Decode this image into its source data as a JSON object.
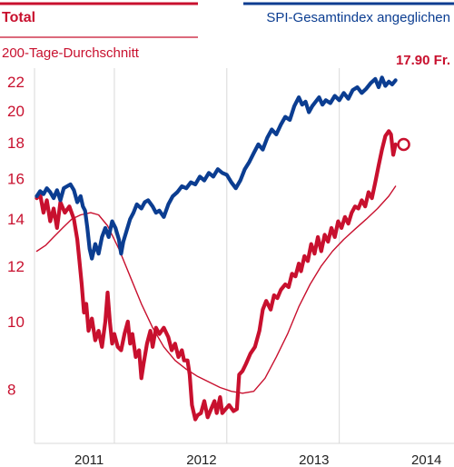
{
  "chart_data": {
    "type": "line",
    "title": "",
    "xlabel": "",
    "ylabel": "",
    "y_scale": "log",
    "ylim": [
      6.7,
      23
    ],
    "xlim": [
      2010.45,
      2014.18
    ],
    "y_ticks": [
      8,
      10,
      12,
      14,
      16,
      18,
      20,
      22
    ],
    "x_ticks": [
      {
        "label": "2011",
        "value": 2011.0
      },
      {
        "label": "2012",
        "value": 2012.0
      },
      {
        "label": "2013",
        "value": 2013.0
      },
      {
        "label": "2014",
        "value": 2014.0
      }
    ],
    "grid": "vertical",
    "last_price_label": "17.90 Fr.",
    "colors": {
      "total": "#c8102e",
      "average": "#c8102e",
      "spi": "#0b3d91",
      "grid": "#d9d9d9"
    },
    "series": [
      {
        "name": "Total",
        "points": [
          [
            2010.47,
            15.0
          ],
          [
            2010.5,
            15.2
          ],
          [
            2010.53,
            14.3
          ],
          [
            2010.56,
            14.9
          ],
          [
            2010.59,
            13.9
          ],
          [
            2010.62,
            14.5
          ],
          [
            2010.65,
            13.6
          ],
          [
            2010.68,
            14.8
          ],
          [
            2010.72,
            14.3
          ],
          [
            2010.76,
            14.6
          ],
          [
            2010.8,
            14.0
          ],
          [
            2010.83,
            13.1
          ],
          [
            2010.85,
            12.2
          ],
          [
            2010.87,
            11.3
          ],
          [
            2010.89,
            10.3
          ],
          [
            2010.91,
            10.6
          ],
          [
            2010.93,
            9.7
          ],
          [
            2010.96,
            10.1
          ],
          [
            2010.99,
            9.4
          ],
          [
            2011.02,
            9.7
          ],
          [
            2011.05,
            9.2
          ],
          [
            2011.08,
            10.0
          ],
          [
            2011.1,
            11.0
          ],
          [
            2011.12,
            10.0
          ],
          [
            2011.14,
            9.3
          ],
          [
            2011.16,
            9.6
          ],
          [
            2011.19,
            9.2
          ],
          [
            2011.22,
            9.1
          ],
          [
            2011.25,
            9.6
          ],
          [
            2011.28,
            10.0
          ],
          [
            2011.3,
            9.3
          ],
          [
            2011.32,
            9.6
          ],
          [
            2011.35,
            8.9
          ],
          [
            2011.38,
            9.1
          ],
          [
            2011.4,
            8.3
          ],
          [
            2011.42,
            8.7
          ],
          [
            2011.45,
            9.3
          ],
          [
            2011.48,
            9.7
          ],
          [
            2011.5,
            9.2
          ],
          [
            2011.53,
            9.8
          ],
          [
            2011.56,
            9.6
          ],
          [
            2011.6,
            9.8
          ],
          [
            2011.64,
            9.5
          ],
          [
            2011.67,
            9.1
          ],
          [
            2011.7,
            9.3
          ],
          [
            2011.73,
            8.9
          ],
          [
            2011.76,
            9.1
          ],
          [
            2011.78,
            8.8
          ],
          [
            2011.81,
            8.8
          ],
          [
            2011.83,
            8.4
          ],
          [
            2011.85,
            7.6
          ],
          [
            2011.88,
            7.25
          ],
          [
            2011.9,
            7.35
          ],
          [
            2011.93,
            7.4
          ],
          [
            2011.96,
            7.7
          ],
          [
            2011.99,
            7.3
          ],
          [
            2012.02,
            7.5
          ],
          [
            2012.05,
            7.7
          ],
          [
            2012.07,
            7.4
          ],
          [
            2012.1,
            7.8
          ],
          [
            2012.12,
            7.4
          ],
          [
            2012.15,
            7.5
          ],
          [
            2012.18,
            7.6
          ],
          [
            2012.22,
            7.45
          ],
          [
            2012.25,
            7.5
          ],
          [
            2012.27,
            8.4
          ],
          [
            2012.3,
            8.5
          ],
          [
            2012.33,
            8.7
          ],
          [
            2012.37,
            9.0
          ],
          [
            2012.41,
            9.2
          ],
          [
            2012.45,
            9.7
          ],
          [
            2012.48,
            10.4
          ],
          [
            2012.51,
            10.7
          ],
          [
            2012.55,
            10.4
          ],
          [
            2012.58,
            10.9
          ],
          [
            2012.61,
            10.8
          ],
          [
            2012.64,
            11.1
          ],
          [
            2012.68,
            11.3
          ],
          [
            2012.71,
            11.2
          ],
          [
            2012.74,
            11.7
          ],
          [
            2012.77,
            11.6
          ],
          [
            2012.8,
            12.1
          ],
          [
            2012.82,
            11.8
          ],
          [
            2012.85,
            12.4
          ],
          [
            2012.88,
            12.2
          ],
          [
            2012.91,
            12.9
          ],
          [
            2012.94,
            12.5
          ],
          [
            2012.97,
            13.2
          ],
          [
            2013.0,
            12.6
          ],
          [
            2013.03,
            13.3
          ],
          [
            2013.06,
            13.0
          ],
          [
            2013.09,
            13.6
          ],
          [
            2013.12,
            13.2
          ],
          [
            2013.15,
            13.9
          ],
          [
            2013.18,
            13.6
          ],
          [
            2013.21,
            14.1
          ],
          [
            2013.24,
            13.8
          ],
          [
            2013.27,
            14.3
          ],
          [
            2013.3,
            14.6
          ],
          [
            2013.33,
            14.5
          ],
          [
            2013.36,
            14.9
          ],
          [
            2013.39,
            14.6
          ],
          [
            2013.42,
            15.3
          ],
          [
            2013.45,
            15.0
          ],
          [
            2013.48,
            15.8
          ],
          [
            2013.51,
            16.7
          ],
          [
            2013.54,
            17.6
          ],
          [
            2013.57,
            18.4
          ],
          [
            2013.6,
            18.7
          ],
          [
            2013.62,
            18.5
          ],
          [
            2013.64,
            17.3
          ],
          [
            2013.66,
            17.9
          ]
        ]
      },
      {
        "name": "200-Tage-Durchschnitt",
        "points": [
          [
            2010.47,
            12.6
          ],
          [
            2010.55,
            12.85
          ],
          [
            2010.62,
            13.2
          ],
          [
            2010.7,
            13.6
          ],
          [
            2010.78,
            14.0
          ],
          [
            2010.86,
            14.2
          ],
          [
            2010.95,
            14.3
          ],
          [
            2011.02,
            14.2
          ],
          [
            2011.1,
            13.7
          ],
          [
            2011.2,
            12.7
          ],
          [
            2011.3,
            11.6
          ],
          [
            2011.4,
            10.6
          ],
          [
            2011.5,
            9.8
          ],
          [
            2011.6,
            9.2
          ],
          [
            2011.7,
            8.8
          ],
          [
            2011.8,
            8.55
          ],
          [
            2011.9,
            8.35
          ],
          [
            2012.0,
            8.2
          ],
          [
            2012.1,
            8.05
          ],
          [
            2012.2,
            7.95
          ],
          [
            2012.3,
            7.9
          ],
          [
            2012.4,
            7.95
          ],
          [
            2012.5,
            8.3
          ],
          [
            2012.6,
            8.9
          ],
          [
            2012.7,
            9.6
          ],
          [
            2012.8,
            10.5
          ],
          [
            2012.9,
            11.3
          ],
          [
            2013.0,
            12.0
          ],
          [
            2013.1,
            12.6
          ],
          [
            2013.2,
            13.1
          ],
          [
            2013.3,
            13.55
          ],
          [
            2013.4,
            14.0
          ],
          [
            2013.5,
            14.5
          ],
          [
            2013.6,
            15.1
          ],
          [
            2013.66,
            15.6
          ]
        ]
      },
      {
        "name": "SPI-Gesamtindex angeglichen",
        "points": [
          [
            2010.47,
            15.1
          ],
          [
            2010.5,
            15.35
          ],
          [
            2010.53,
            15.2
          ],
          [
            2010.56,
            15.5
          ],
          [
            2010.59,
            15.3
          ],
          [
            2010.62,
            15.0
          ],
          [
            2010.65,
            15.4
          ],
          [
            2010.68,
            14.9
          ],
          [
            2010.71,
            15.5
          ],
          [
            2010.74,
            15.6
          ],
          [
            2010.77,
            15.7
          ],
          [
            2010.8,
            15.4
          ],
          [
            2010.83,
            14.8
          ],
          [
            2010.86,
            15.1
          ],
          [
            2010.88,
            14.6
          ],
          [
            2010.9,
            14.4
          ],
          [
            2010.92,
            13.6
          ],
          [
            2010.94,
            12.7
          ],
          [
            2010.96,
            12.3
          ],
          [
            2010.99,
            12.9
          ],
          [
            2011.02,
            12.5
          ],
          [
            2011.05,
            13.2
          ],
          [
            2011.08,
            13.6
          ],
          [
            2011.11,
            13.2
          ],
          [
            2011.14,
            13.9
          ],
          [
            2011.17,
            13.6
          ],
          [
            2011.2,
            13.1
          ],
          [
            2011.22,
            12.5
          ],
          [
            2011.24,
            13.0
          ],
          [
            2011.27,
            13.5
          ],
          [
            2011.3,
            14.0
          ],
          [
            2011.33,
            14.3
          ],
          [
            2011.36,
            14.7
          ],
          [
            2011.4,
            14.5
          ],
          [
            2011.43,
            14.8
          ],
          [
            2011.46,
            14.9
          ],
          [
            2011.5,
            14.6
          ],
          [
            2011.53,
            14.3
          ],
          [
            2011.56,
            14.4
          ],
          [
            2011.6,
            14.1
          ],
          [
            2011.64,
            14.7
          ],
          [
            2011.68,
            15.1
          ],
          [
            2011.72,
            15.3
          ],
          [
            2011.76,
            15.6
          ],
          [
            2011.8,
            15.5
          ],
          [
            2011.84,
            15.8
          ],
          [
            2011.88,
            15.7
          ],
          [
            2011.92,
            16.1
          ],
          [
            2011.96,
            15.9
          ],
          [
            2012.0,
            16.3
          ],
          [
            2012.04,
            16.1
          ],
          [
            2012.08,
            16.5
          ],
          [
            2012.12,
            16.3
          ],
          [
            2012.16,
            16.2
          ],
          [
            2012.2,
            15.8
          ],
          [
            2012.24,
            15.5
          ],
          [
            2012.28,
            15.9
          ],
          [
            2012.32,
            16.5
          ],
          [
            2012.36,
            16.9
          ],
          [
            2012.4,
            17.4
          ],
          [
            2012.44,
            17.9
          ],
          [
            2012.48,
            17.6
          ],
          [
            2012.52,
            18.3
          ],
          [
            2012.56,
            18.8
          ],
          [
            2012.6,
            18.5
          ],
          [
            2012.64,
            19.1
          ],
          [
            2012.68,
            19.6
          ],
          [
            2012.72,
            19.4
          ],
          [
            2012.76,
            20.3
          ],
          [
            2012.8,
            20.9
          ],
          [
            2012.83,
            20.4
          ],
          [
            2012.86,
            20.6
          ],
          [
            2012.89,
            19.9
          ],
          [
            2012.92,
            20.3
          ],
          [
            2012.95,
            20.6
          ],
          [
            2012.98,
            20.9
          ],
          [
            2013.01,
            20.4
          ],
          [
            2013.04,
            20.7
          ],
          [
            2013.08,
            20.5
          ],
          [
            2013.12,
            21.0
          ],
          [
            2013.16,
            20.7
          ],
          [
            2013.2,
            21.2
          ],
          [
            2013.24,
            20.8
          ],
          [
            2013.28,
            21.4
          ],
          [
            2013.32,
            21.6
          ],
          [
            2013.36,
            21.2
          ],
          [
            2013.4,
            21.5
          ],
          [
            2013.44,
            21.9
          ],
          [
            2013.48,
            22.2
          ],
          [
            2013.51,
            21.6
          ],
          [
            2013.54,
            22.3
          ],
          [
            2013.57,
            21.7
          ],
          [
            2013.6,
            22.0
          ],
          [
            2013.63,
            21.8
          ],
          [
            2013.66,
            22.1
          ]
        ]
      }
    ]
  }
}
